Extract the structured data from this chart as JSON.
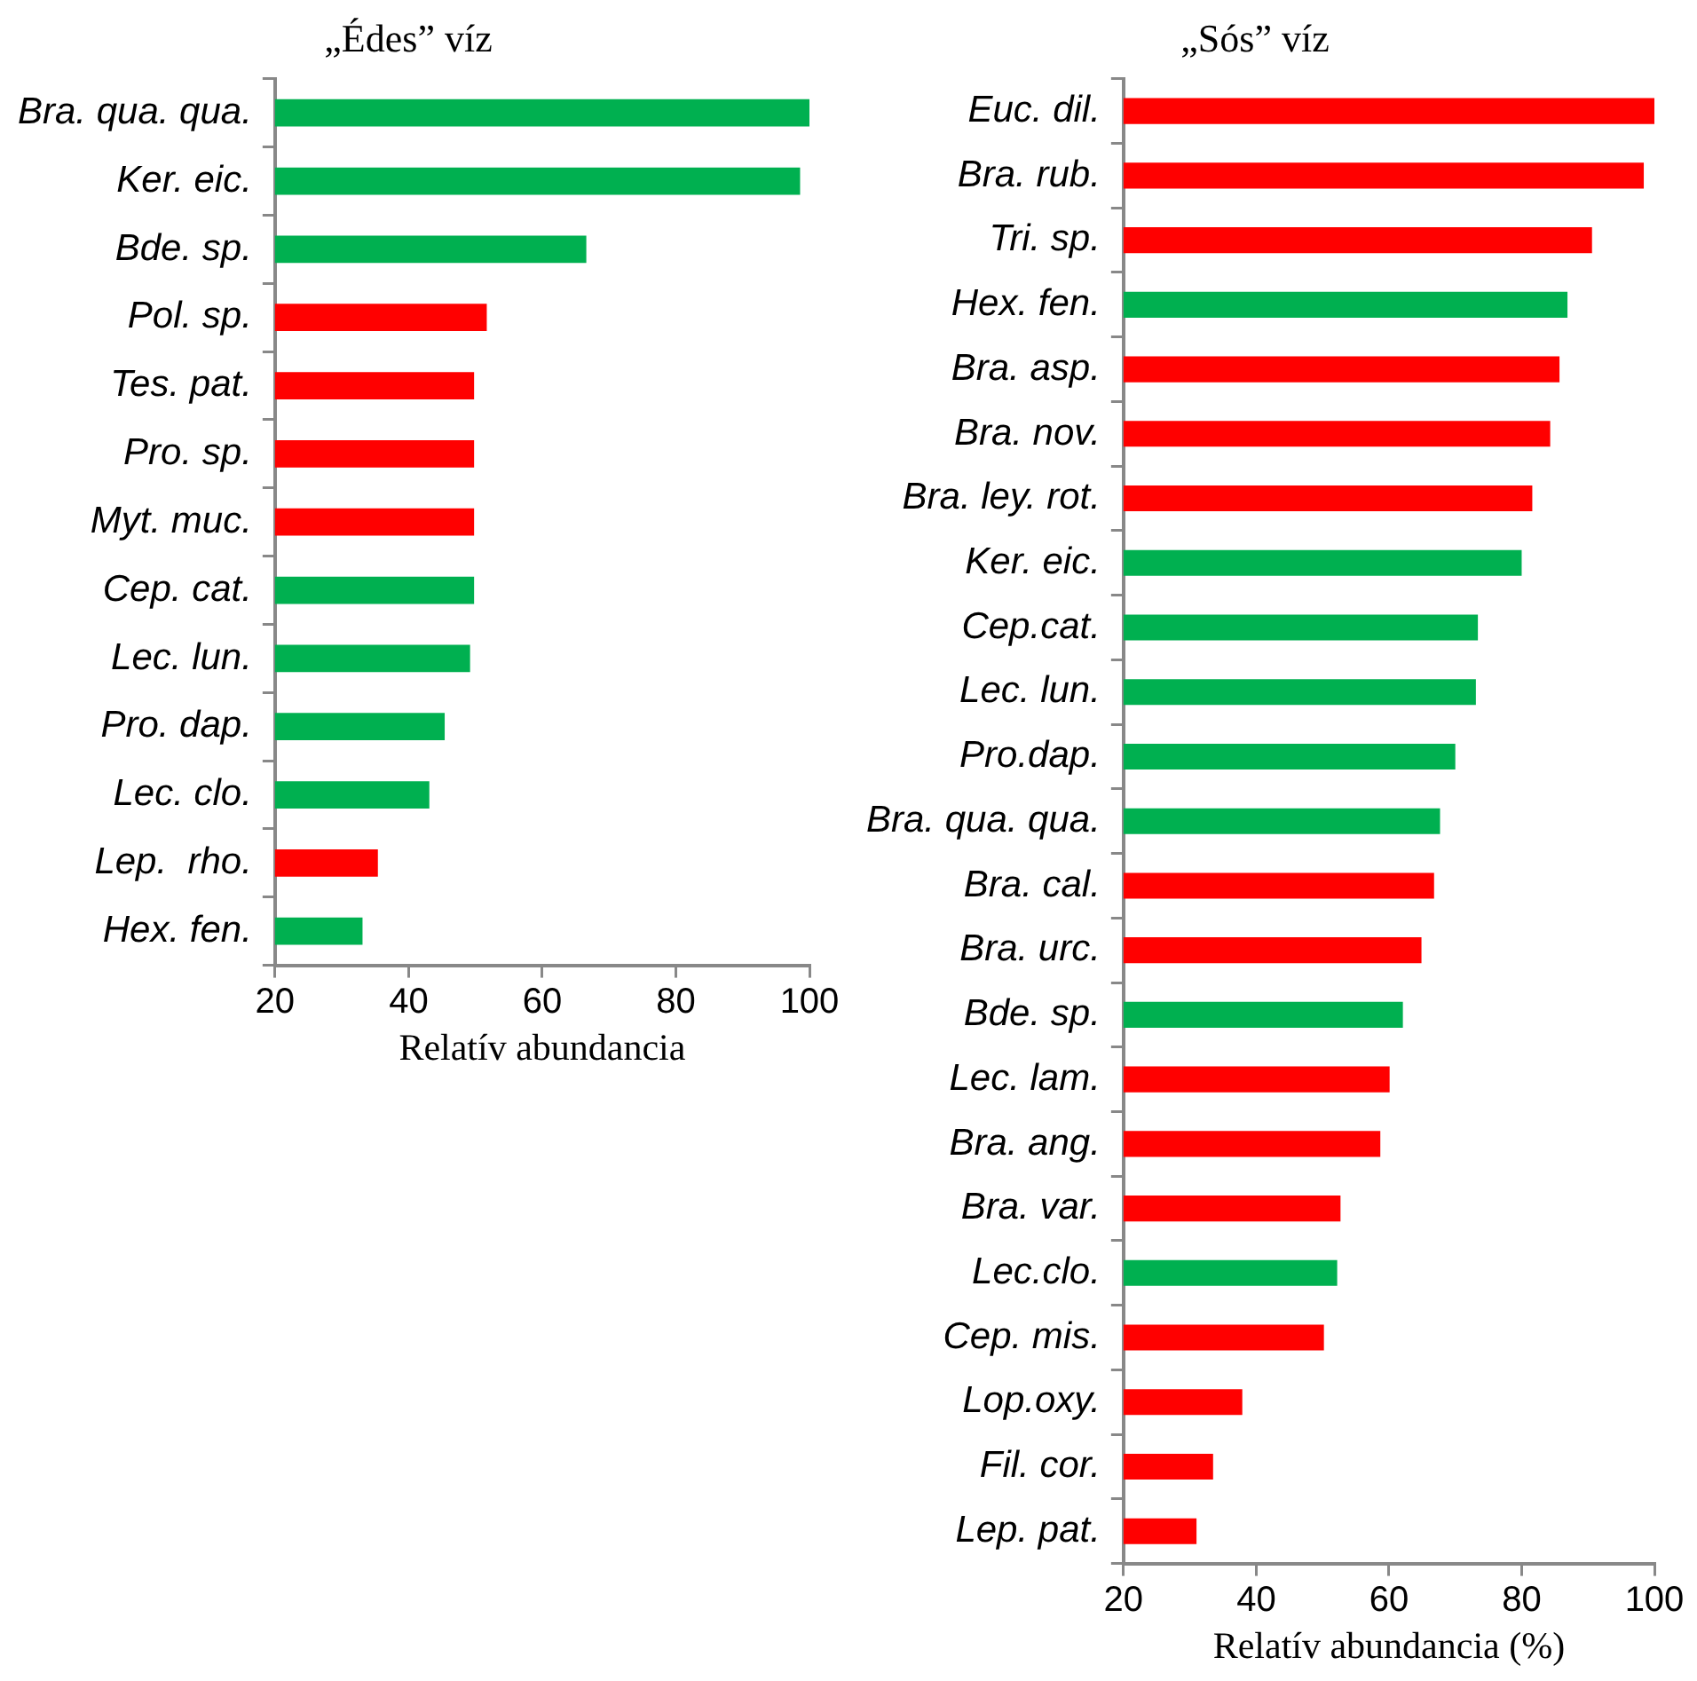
{
  "chart_data": [
    {
      "type": "bar",
      "orientation": "horizontal",
      "title": "„Édes” víz",
      "xlabel": "Relatív abundancia",
      "categories": [
        "Bra. qua. qua.",
        "Ker. eic.",
        "Bde. sp.",
        "Pol. sp.",
        "Tes. pat.",
        "Pro. sp.",
        "Myt. muc.",
        "Cep. cat.",
        "Lec. lun.",
        "Pro. dap.",
        "Lec. clo.",
        "Lep.  rho.",
        "Hex. fen."
      ],
      "values": [
        100,
        98.6,
        66.6,
        51.7,
        49.8,
        49.8,
        49.8,
        49.8,
        49.2,
        45.4,
        43.1,
        35.4,
        33.1
      ],
      "colors": [
        "#00b050",
        "#00b050",
        "#00b050",
        "#ff0000",
        "#ff0000",
        "#ff0000",
        "#ff0000",
        "#00b050",
        "#00b050",
        "#00b050",
        "#00b050",
        "#ff0000",
        "#00b050"
      ],
      "xlim": [
        20,
        100
      ],
      "xticks": [
        20,
        40,
        60,
        80,
        100
      ]
    },
    {
      "type": "bar",
      "orientation": "horizontal",
      "title": "„Sós” víz",
      "xlabel": "Relatív abundancia (%)",
      "categories": [
        "Euc. dil.",
        "Bra. rub.",
        "Tri. sp.",
        "Hex. fen.",
        "Bra. asp.",
        "Bra. nov.",
        "Bra. ley. rot.",
        "Ker. eic.",
        "Cep.cat.",
        "Lec. lun.",
        "Pro.dap.",
        "Bra. qua. qua.",
        "Bra. cal.",
        "Bra. urc.",
        "Bde. sp.",
        "Lec. lam.",
        "Bra. ang.",
        "Bra. var.",
        "Lec.clo.",
        "Cep. mis.",
        "Lop.oxy.",
        "Fil. cor.",
        "Lep. pat."
      ],
      "values": [
        100,
        98.4,
        90.6,
        86.9,
        85.7,
        84.3,
        81.6,
        80,
        73.4,
        73.1,
        70,
        67.7,
        66.8,
        64.9,
        62.1,
        60.1,
        58.7,
        52.7,
        52.2,
        50.2,
        37.9,
        33.5,
        31
      ],
      "colors": [
        "#ff0000",
        "#ff0000",
        "#ff0000",
        "#00b050",
        "#ff0000",
        "#ff0000",
        "#ff0000",
        "#00b050",
        "#00b050",
        "#00b050",
        "#00b050",
        "#00b050",
        "#ff0000",
        "#ff0000",
        "#00b050",
        "#ff0000",
        "#ff0000",
        "#ff0000",
        "#00b050",
        "#ff0000",
        "#ff0000",
        "#ff0000",
        "#ff0000"
      ],
      "xlim": [
        20,
        100
      ],
      "xticks": [
        20,
        40,
        60,
        80,
        100
      ]
    }
  ]
}
